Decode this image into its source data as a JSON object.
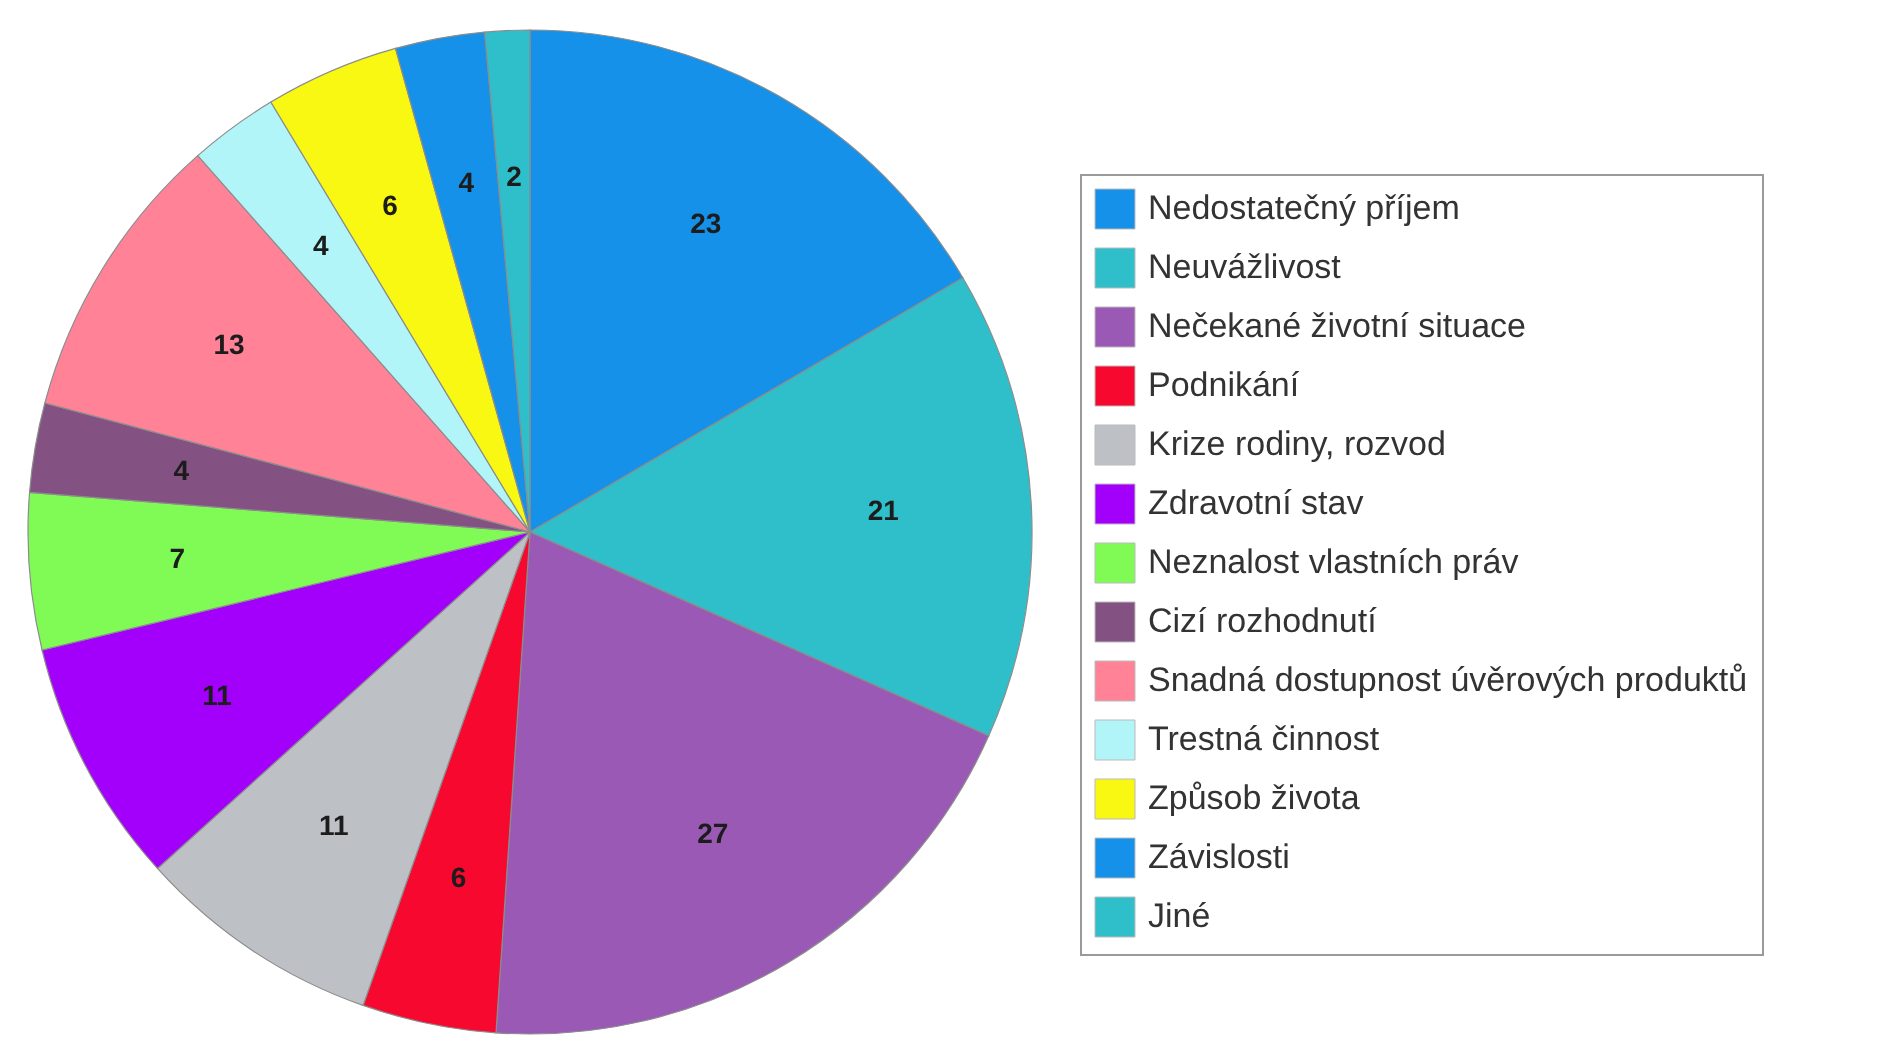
{
  "chart_data": {
    "type": "pie",
    "categories": [
      "Nedostatečný příjem",
      "Neuvážlivost",
      "Nečekané životní situace",
      "Podnikání",
      "Krize rodiny, rozvod",
      "Zdravotní stav",
      "Neznalost vlastních práv",
      "Cizí rozhodnutí",
      "Snadná dostupnost úvěrových produktů",
      "Trestná činnost",
      "Způsob života",
      "Závislosti",
      "Jiné"
    ],
    "values": [
      23,
      21,
      27,
      6,
      11,
      11,
      7,
      4,
      13,
      4,
      6,
      4,
      2
    ],
    "colors": [
      "#1591ea",
      "#2ebfca",
      "#9a59b5",
      "#f6082f",
      "#bdc1c5",
      "#a200fb",
      "#80fb55",
      "#835283",
      "#ff8297",
      "#b2f5f8",
      "#f8f812",
      "#1591ea",
      "#2ebfca"
    ],
    "data_labels": true,
    "legend": "right"
  }
}
